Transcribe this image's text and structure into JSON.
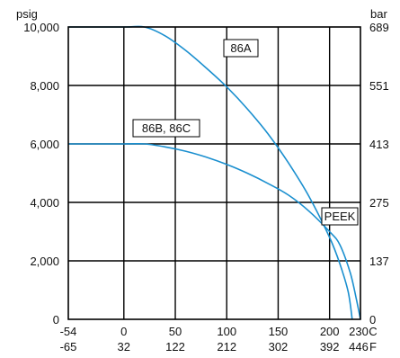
{
  "chart_data": {
    "type": "line",
    "x_units": [
      "C",
      "F"
    ],
    "x_ticks_c": [
      "-54",
      "0",
      "50",
      "100",
      "150",
      "200",
      "230"
    ],
    "x_ticks_f": [
      "-65",
      "32",
      "122",
      "212",
      "302",
      "392",
      "446"
    ],
    "xlim": [
      -54,
      230
    ],
    "y_left_unit": "psig",
    "y_right_unit": "bar",
    "y_ticks_left": [
      "10,000",
      "8,000",
      "6,000",
      "4,000",
      "2,000",
      "0"
    ],
    "y_ticks_right": [
      "689",
      "551",
      "413",
      "275",
      "137",
      "0"
    ],
    "ylim": [
      0,
      10000
    ],
    "grid": true,
    "line_color": "#1a8fcf",
    "series": [
      {
        "name": "86A",
        "points": [
          [
            -54,
            10000
          ],
          [
            0,
            10000
          ],
          [
            20,
            10000
          ],
          [
            40,
            9700
          ],
          [
            60,
            9200
          ],
          [
            80,
            8600
          ],
          [
            100,
            7950
          ],
          [
            120,
            7200
          ],
          [
            140,
            6350
          ],
          [
            160,
            5350
          ],
          [
            180,
            4200
          ],
          [
            200,
            2800
          ],
          [
            210,
            1900
          ],
          [
            218,
            950
          ],
          [
            222,
            0
          ]
        ]
      },
      {
        "name": "86B, 86C",
        "points": [
          [
            -54,
            6000
          ],
          [
            0,
            6000
          ],
          [
            20,
            6000
          ],
          [
            40,
            5900
          ],
          [
            60,
            5750
          ],
          [
            80,
            5550
          ],
          [
            100,
            5300
          ],
          [
            120,
            5000
          ],
          [
            140,
            4650
          ],
          [
            160,
            4250
          ],
          [
            180,
            3700
          ],
          [
            200,
            3000
          ],
          [
            210,
            2550
          ],
          [
            220,
            1600
          ],
          [
            226,
            700
          ],
          [
            230,
            0
          ]
        ]
      }
    ],
    "annotations": [
      "86A",
      "86B, 86C",
      "PEEK"
    ]
  }
}
